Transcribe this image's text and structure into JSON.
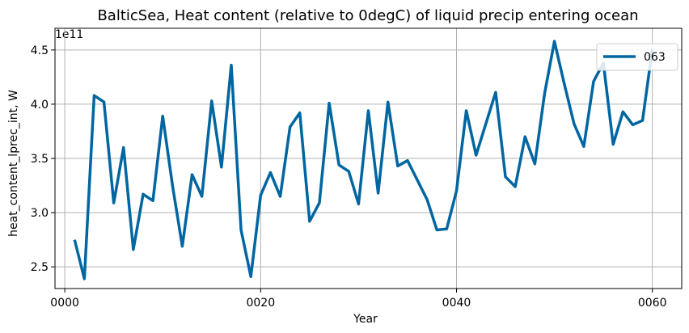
{
  "chart_data": {
    "type": "line",
    "title": "BalticSea, Heat content (relative to 0degC) of liquid precip entering ocean",
    "xlabel": "Year",
    "ylabel": "heat_content_lprec_int, W",
    "y_offset_label": "1e11",
    "y_scale_factor": 100000000000.0,
    "xlim": [
      -1,
      63
    ],
    "ylim": [
      2.3,
      4.7
    ],
    "x_ticks": [
      0,
      20,
      40,
      60
    ],
    "x_tick_labels": [
      "0000",
      "0020",
      "0040",
      "0060"
    ],
    "y_ticks": [
      2.5,
      3.0,
      3.5,
      4.0,
      4.5
    ],
    "y_tick_labels": [
      "2.5",
      "3.0",
      "3.5",
      "4.0",
      "4.5"
    ],
    "grid": true,
    "legend_position": "top-right",
    "colors": {
      "series": "#0066a1",
      "grid": "#b0b0b0",
      "axis": "#000000"
    },
    "series": [
      {
        "name": "063",
        "x": [
          1,
          2,
          3,
          4,
          5,
          6,
          7,
          8,
          9,
          10,
          11,
          12,
          13,
          14,
          15,
          16,
          17,
          18,
          19,
          20,
          21,
          22,
          23,
          24,
          25,
          26,
          27,
          28,
          29,
          30,
          31,
          32,
          33,
          34,
          35,
          36,
          37,
          38,
          39,
          40,
          41,
          42,
          43,
          44,
          45,
          46,
          47,
          48,
          49,
          50,
          51,
          52,
          53,
          54,
          55,
          56,
          57,
          58,
          59,
          60
        ],
        "values": [
          2.75,
          2.39,
          4.08,
          4.02,
          3.09,
          3.6,
          2.66,
          3.17,
          3.11,
          3.89,
          3.25,
          2.69,
          3.35,
          3.15,
          4.03,
          3.42,
          4.36,
          2.84,
          2.41,
          3.16,
          3.37,
          3.15,
          3.79,
          3.92,
          2.92,
          3.09,
          4.01,
          3.44,
          3.38,
          3.08,
          3.94,
          3.18,
          4.02,
          3.43,
          3.48,
          3.3,
          3.12,
          2.84,
          2.85,
          3.2,
          3.94,
          3.53,
          3.82,
          4.11,
          3.33,
          3.24,
          3.7,
          3.45,
          4.1,
          4.58,
          4.19,
          3.82,
          3.61,
          4.21,
          4.38,
          3.63,
          3.93,
          3.81,
          3.85,
          4.51
        ]
      }
    ]
  }
}
